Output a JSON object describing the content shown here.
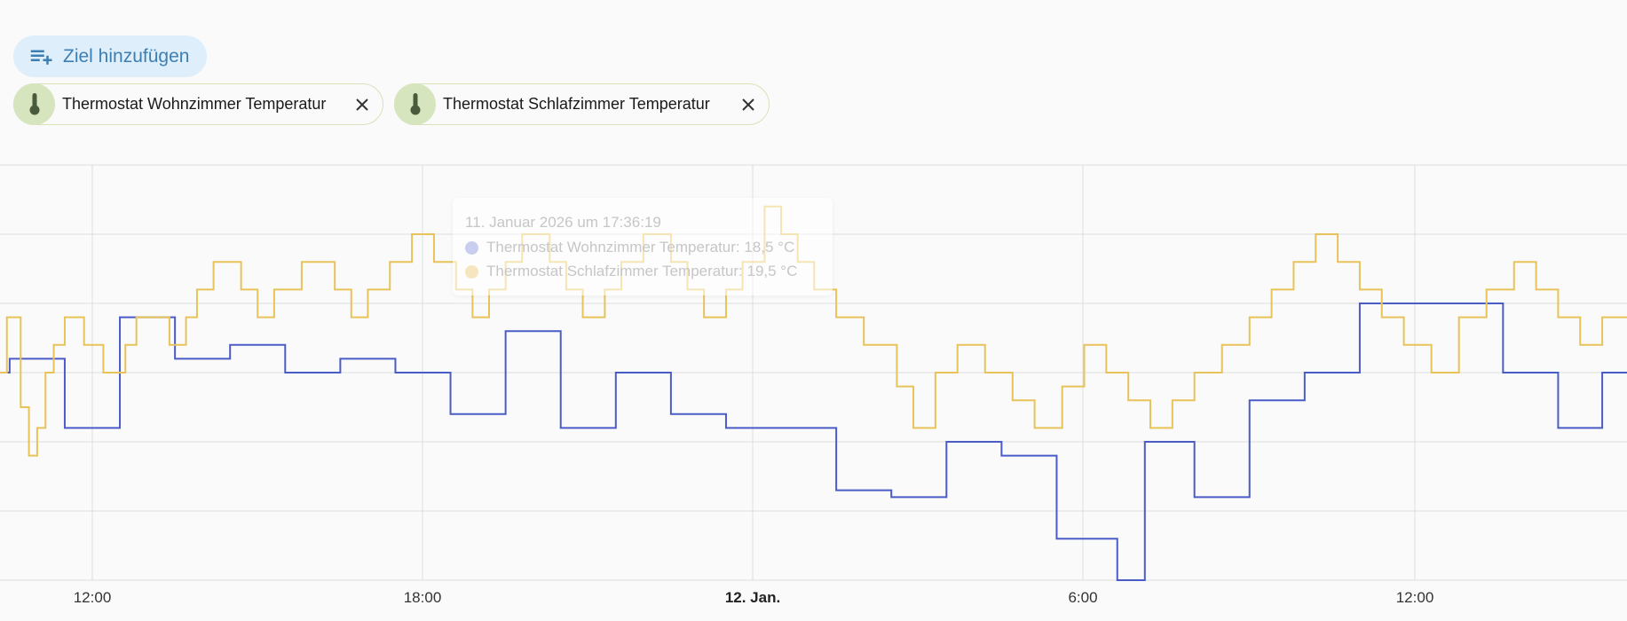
{
  "toolbar": {
    "add_target_label": "Ziel hinzufügen",
    "add_target_icon": "playlist-plus-icon"
  },
  "chips": [
    {
      "label": "Thermostat Wohnzimmer Temperatur",
      "icon": "thermometer-icon"
    },
    {
      "label": "Thermostat Schlafzimmer Temperatur",
      "icon": "thermometer-icon"
    }
  ],
  "tooltip": {
    "time": "11. Januar 2026 um 17:36:19",
    "rows": [
      {
        "text": "Thermostat Wohnzimmer Temperatur: 18,5 °C",
        "color": "#c9cdee"
      },
      {
        "text": "Thermostat Schlafzimmer Temperatur: 19,5 °C",
        "color": "#f5e6bf"
      }
    ]
  },
  "colors": {
    "series_blue": "#4a5cc7",
    "series_yellow": "#e8c35a",
    "grid": "#dddddd",
    "accent": "#3d7fb3"
  },
  "chart_data": {
    "type": "line",
    "step": true,
    "x_tick_labels": [
      "12:00",
      "18:00",
      "12. Jan.",
      "6:00",
      "12:00"
    ],
    "x_tick_bold": [
      false,
      false,
      true,
      false,
      false
    ],
    "y_range": [
      15.0,
      21.0
    ],
    "y_gridlines": [
      15.0,
      16.0,
      17.0,
      18.0,
      19.0,
      20.0,
      21.0
    ],
    "x_range_hours": [
      -1.7,
      27.8
    ],
    "series": [
      {
        "color_key": "series_blue",
        "points": [
          [
            -1.7,
            18.0
          ],
          [
            -1.5,
            18.2
          ],
          [
            -0.5,
            17.2
          ],
          [
            0.5,
            18.8
          ],
          [
            1.5,
            18.2
          ],
          [
            2.5,
            18.4
          ],
          [
            3.5,
            18.0
          ],
          [
            4.5,
            18.2
          ],
          [
            5.5,
            18.0
          ],
          [
            6.5,
            17.4
          ],
          [
            7.5,
            18.6
          ],
          [
            8.5,
            17.2
          ],
          [
            9.5,
            18.0
          ],
          [
            10.5,
            17.4
          ],
          [
            11.5,
            17.2
          ],
          [
            13.5,
            16.3
          ],
          [
            14.5,
            16.2
          ],
          [
            15.5,
            17.0
          ],
          [
            16.5,
            16.8
          ],
          [
            17.5,
            15.6
          ],
          [
            18.6,
            15.0
          ],
          [
            19.1,
            17.0
          ],
          [
            20.0,
            16.2
          ],
          [
            21.0,
            17.6
          ],
          [
            22.0,
            18.0
          ],
          [
            23.0,
            19.0
          ],
          [
            25.6,
            18.0
          ],
          [
            26.6,
            17.2
          ],
          [
            27.4,
            18.0
          ]
        ]
      },
      {
        "color_key": "series_yellow",
        "points": [
          [
            -1.7,
            18.0
          ],
          [
            -1.55,
            18.8
          ],
          [
            -1.3,
            17.5
          ],
          [
            -1.15,
            16.8
          ],
          [
            -1.0,
            17.2
          ],
          [
            -0.85,
            18.0
          ],
          [
            -0.7,
            18.4
          ],
          [
            -0.5,
            18.8
          ],
          [
            -0.15,
            18.4
          ],
          [
            0.2,
            18.0
          ],
          [
            0.6,
            18.4
          ],
          [
            0.8,
            18.8
          ],
          [
            1.4,
            18.4
          ],
          [
            1.7,
            18.8
          ],
          [
            1.9,
            19.2
          ],
          [
            2.2,
            19.6
          ],
          [
            2.7,
            19.2
          ],
          [
            3.0,
            18.8
          ],
          [
            3.3,
            19.2
          ],
          [
            3.8,
            19.6
          ],
          [
            4.4,
            19.2
          ],
          [
            4.7,
            18.8
          ],
          [
            5.0,
            19.2
          ],
          [
            5.4,
            19.6
          ],
          [
            5.8,
            20.0
          ],
          [
            6.2,
            19.6
          ],
          [
            6.6,
            19.2
          ],
          [
            6.9,
            18.8
          ],
          [
            7.2,
            19.2
          ],
          [
            7.5,
            19.6
          ],
          [
            7.8,
            20.0
          ],
          [
            8.3,
            19.6
          ],
          [
            8.6,
            19.2
          ],
          [
            8.9,
            18.8
          ],
          [
            9.3,
            19.2
          ],
          [
            9.6,
            19.6
          ],
          [
            10.0,
            20.0
          ],
          [
            10.5,
            19.6
          ],
          [
            10.8,
            19.2
          ],
          [
            11.1,
            18.8
          ],
          [
            11.5,
            19.2
          ],
          [
            11.8,
            19.6
          ],
          [
            12.2,
            20.4
          ],
          [
            12.5,
            20.0
          ],
          [
            12.8,
            19.6
          ],
          [
            13.1,
            19.2
          ],
          [
            13.5,
            18.8
          ],
          [
            14.0,
            18.4
          ],
          [
            14.6,
            17.8
          ],
          [
            14.9,
            17.2
          ],
          [
            15.3,
            18.0
          ],
          [
            15.7,
            18.4
          ],
          [
            16.2,
            18.0
          ],
          [
            16.7,
            17.6
          ],
          [
            17.1,
            17.2
          ],
          [
            17.6,
            17.8
          ],
          [
            18.0,
            18.4
          ],
          [
            18.4,
            18.0
          ],
          [
            18.8,
            17.6
          ],
          [
            19.2,
            17.2
          ],
          [
            19.6,
            17.6
          ],
          [
            20.0,
            18.0
          ],
          [
            20.5,
            18.4
          ],
          [
            21.0,
            18.8
          ],
          [
            21.4,
            19.2
          ],
          [
            21.8,
            19.6
          ],
          [
            22.2,
            20.0
          ],
          [
            22.6,
            19.6
          ],
          [
            23.0,
            19.2
          ],
          [
            23.4,
            18.8
          ],
          [
            23.8,
            18.4
          ],
          [
            24.3,
            18.0
          ],
          [
            24.8,
            18.8
          ],
          [
            25.3,
            19.2
          ],
          [
            25.8,
            19.6
          ],
          [
            26.2,
            19.2
          ],
          [
            26.6,
            18.8
          ],
          [
            27.0,
            18.4
          ],
          [
            27.4,
            18.8
          ]
        ]
      }
    ]
  }
}
